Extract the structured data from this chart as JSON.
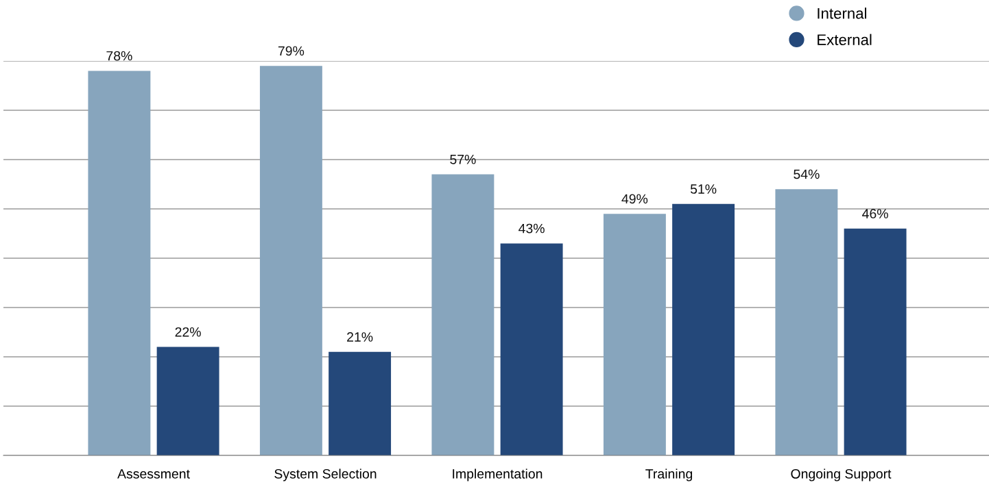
{
  "chart_data": {
    "type": "bar",
    "categories": [
      "Assessment",
      "System Selection",
      "Implementation",
      "Training",
      "Ongoing Support"
    ],
    "series": [
      {
        "name": "Internal",
        "color": "#87a5bd",
        "values": [
          78,
          79,
          57,
          49,
          54
        ],
        "value_labels": [
          "78%",
          "79%",
          "57%",
          "49%",
          "54%"
        ]
      },
      {
        "name": "External",
        "color": "#24487a",
        "values": [
          22,
          21,
          43,
          51,
          46
        ],
        "value_labels": [
          "22%",
          "21%",
          "43%",
          "51%",
          "46%"
        ]
      }
    ],
    "ylim": [
      0,
      80
    ],
    "yticks": [
      {
        "value": 0,
        "label": null
      },
      {
        "value": 10,
        "label": null
      },
      {
        "value": 20,
        "label": null
      },
      {
        "value": 30,
        "label": null
      },
      {
        "value": 40,
        "label": null
      },
      {
        "value": 50,
        "label": null
      },
      {
        "value": 60,
        "label": null
      },
      {
        "value": 70,
        "label": null
      },
      {
        "value": 80,
        "label": null
      }
    ],
    "grid": "y",
    "legend": "top right",
    "marker": "circle",
    "tick_labels": "x"
  }
}
